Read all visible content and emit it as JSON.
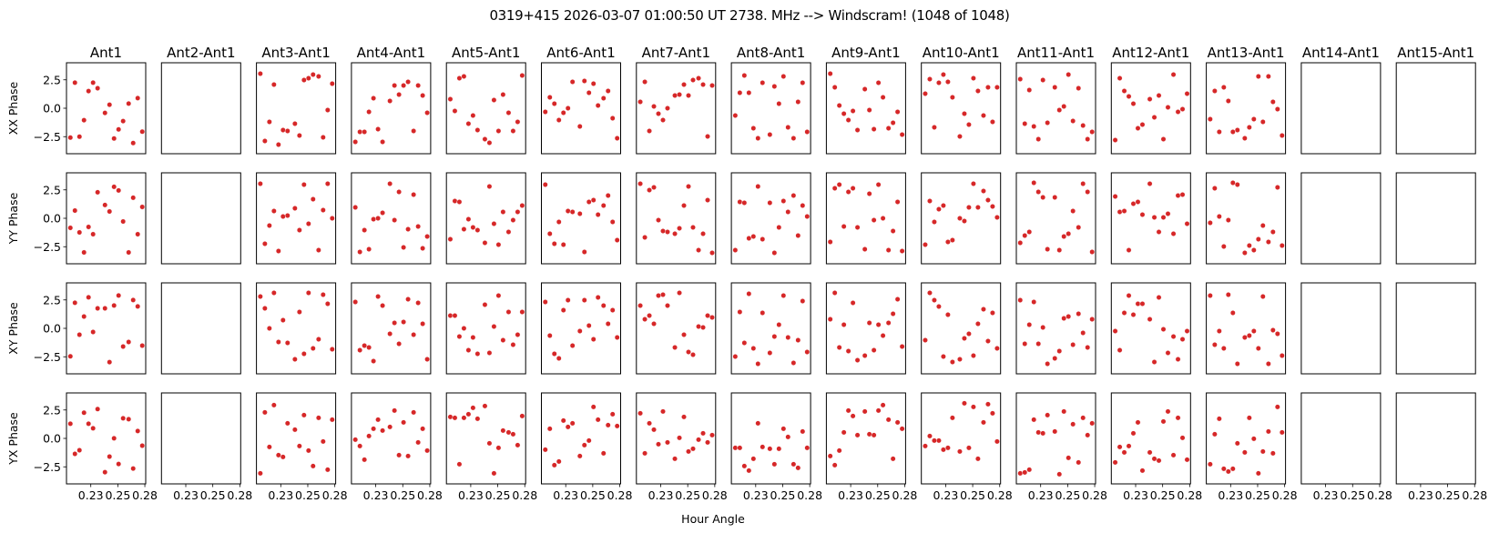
{
  "chart_data": {
    "type": "scatter",
    "title": "0319+415  2026-03-07 01:00:50 UT  2738. MHz  --> Windscram! (1048 of 1048)",
    "xlabel": "Hour Angle",
    "row_labels": [
      "XX Phase",
      "YY Phase",
      "XY Phase",
      "YX Phase"
    ],
    "row_keys": [
      "XX",
      "YY",
      "XY",
      "YX"
    ],
    "xlim": [
      0.2025,
      0.2758
    ],
    "ylim": [
      -4.0,
      4.0
    ],
    "xticks": [
      {
        "value": 0.225,
        "label": "0.23"
      },
      {
        "value": 0.25,
        "label": "0.25"
      },
      {
        "value": 0.275,
        "label": "0.28"
      }
    ],
    "yticks": [
      {
        "value": 2.5,
        "label": "2.5"
      },
      {
        "value": 0.0,
        "label": "0.0"
      },
      {
        "value": -2.5,
        "label": "−2.5"
      }
    ],
    "marker_color": "#d62728",
    "grid": false,
    "x": [
      0.2061,
      0.2103,
      0.2145,
      0.2187,
      0.2229,
      0.2271,
      0.2313,
      0.2381,
      0.2423,
      0.2465,
      0.2507,
      0.2549,
      0.26,
      0.2642,
      0.2684,
      0.2726
    ],
    "panels": [
      {
        "title": "Ant1",
        "XX": [
          -2.58,
          2.25,
          -2.5,
          -1.05,
          1.51,
          2.25,
          1.76,
          -0.41,
          0.31,
          -2.66,
          -1.86,
          -1.13,
          0.41,
          -3.06,
          0.89,
          -2.06
        ],
        "YY": [
          -0.84,
          0.68,
          -1.24,
          -3.0,
          -0.76,
          -1.4,
          2.29,
          1.17,
          0.6,
          2.77,
          2.45,
          -0.28,
          -3.0,
          1.81,
          -1.4,
          1.0
        ],
        "XY": [
          -2.46,
          2.25,
          -0.56,
          1.04,
          2.73,
          -0.32,
          1.76,
          1.76,
          -2.97,
          2.01,
          2.89,
          -1.6,
          -1.2,
          2.49,
          1.93,
          -1.52
        ],
        "YX": [
          1.29,
          -1.36,
          -1.04,
          2.26,
          1.29,
          0.89,
          2.58,
          -2.97,
          -1.6,
          0.01,
          -2.25,
          1.77,
          1.69,
          -2.65,
          0.65,
          -0.64
        ]
      },
      {
        "title": "Ant2-Ant1",
        "XX": [],
        "YY": [],
        "XY": [],
        "YX": []
      },
      {
        "title": "Ant3-Ant1",
        "XX": [
          3.04,
          -2.88,
          -1.2,
          2.08,
          -3.2,
          -1.92,
          -2.0,
          -1.36,
          -2.4,
          2.48,
          2.64,
          2.96,
          2.8,
          -2.56,
          -0.16,
          2.16
        ],
        "YY": [
          3.04,
          -2.24,
          -0.64,
          0.64,
          -2.88,
          0.16,
          0.24,
          0.88,
          -1.04,
          2.96,
          -0.48,
          1.68,
          -2.8,
          0.72,
          3.04,
          0.0
        ],
        "XY": [
          2.8,
          1.76,
          0.0,
          3.12,
          -1.2,
          0.72,
          -1.28,
          -2.72,
          1.44,
          -2.24,
          3.12,
          -1.76,
          -0.96,
          2.96,
          2.16,
          -1.84
        ],
        "YX": [
          -3.07,
          2.29,
          -0.75,
          2.93,
          -1.47,
          -1.63,
          1.33,
          0.77,
          -0.67,
          2.05,
          -1.07,
          -2.43,
          1.81,
          -0.27,
          -2.75,
          1.65
        ]
      },
      {
        "title": "Ant4-Ant1",
        "XX": [
          -2.96,
          -2.08,
          -2.08,
          -0.32,
          0.88,
          -1.84,
          -2.96,
          0.64,
          2.0,
          1.2,
          2.0,
          2.32,
          -2.0,
          2.0,
          1.12,
          -0.4
        ],
        "YY": [
          0.96,
          -2.96,
          -1.04,
          -2.72,
          -0.08,
          0.0,
          0.48,
          3.04,
          -0.16,
          2.32,
          -2.56,
          -0.96,
          2.08,
          -0.72,
          -2.64,
          -1.6
        ],
        "XY": [
          2.32,
          -1.92,
          -1.52,
          -1.68,
          -2.88,
          2.8,
          2.0,
          -0.48,
          0.48,
          -1.36,
          0.56,
          2.56,
          -0.56,
          2.24,
          0.4,
          -2.72
        ],
        "YX": [
          -0.11,
          -0.67,
          -1.87,
          0.21,
          0.85,
          1.65,
          0.69,
          1.01,
          2.45,
          -1.47,
          1.41,
          -1.55,
          2.29,
          -0.35,
          0.85,
          -1.07
        ]
      },
      {
        "title": "Ant5-Ant1",
        "XX": [
          0.8,
          -0.24,
          2.64,
          2.8,
          -1.36,
          -0.64,
          -1.92,
          -2.72,
          -3.04,
          0.72,
          -2.0,
          1.2,
          -0.4,
          -2.0,
          -1.2,
          2.88
        ],
        "YY": [
          -1.84,
          1.52,
          1.44,
          -0.96,
          -0.08,
          -0.8,
          -1.04,
          -2.16,
          2.8,
          -0.48,
          -2.32,
          0.56,
          -1.2,
          -0.16,
          0.56,
          1.12
        ],
        "XY": [
          1.12,
          1.12,
          -0.72,
          0.0,
          -1.92,
          -0.8,
          -2.24,
          2.08,
          -2.16,
          0.16,
          2.88,
          -1.04,
          1.44,
          -1.44,
          -0.56,
          1.44
        ],
        "YX": [
          1.89,
          1.81,
          -2.27,
          1.81,
          2.13,
          2.69,
          1.73,
          2.85,
          -0.43,
          -3.07,
          -0.83,
          0.69,
          0.53,
          0.37,
          -0.59,
          1.97
        ]
      },
      {
        "title": "Ant6-Ant1",
        "XX": [
          -0.32,
          0.96,
          0.4,
          -1.04,
          -0.4,
          0.0,
          2.32,
          -1.6,
          2.4,
          1.36,
          2.16,
          0.24,
          0.88,
          1.52,
          -0.88,
          -2.64
        ],
        "YY": [
          2.96,
          -1.36,
          -2.24,
          -0.32,
          -2.32,
          0.64,
          0.56,
          0.4,
          -2.96,
          1.44,
          1.6,
          0.32,
          1.12,
          2.0,
          -0.32,
          -1.92
        ],
        "XY": [
          2.32,
          -0.64,
          -2.24,
          -2.64,
          1.6,
          2.48,
          -1.52,
          -0.24,
          2.48,
          0.24,
          -0.96,
          2.72,
          2.0,
          0.4,
          1.6,
          -0.8
        ],
        "YX": [
          -0.99,
          0.85,
          -2.35,
          -2.03,
          1.57,
          1.01,
          1.33,
          -1.55,
          -0.59,
          -0.19,
          2.77,
          1.65,
          -1.31,
          1.17,
          2.13,
          1.09
        ]
      },
      {
        "title": "Ant7-Ant1",
        "XX": [
          0.56,
          2.32,
          -2.0,
          0.16,
          -0.48,
          -1.04,
          0.0,
          1.12,
          1.2,
          2.08,
          1.12,
          2.48,
          2.64,
          2.08,
          -2.48,
          2.0
        ],
        "YY": [
          3.04,
          -1.68,
          2.48,
          2.72,
          -0.16,
          -1.12,
          -1.2,
          -1.36,
          -0.88,
          1.12,
          2.8,
          -0.8,
          -2.8,
          -1.36,
          1.6,
          -3.04
        ],
        "XY": [
          2.0,
          0.8,
          1.12,
          0.4,
          2.88,
          2.96,
          2.0,
          -1.68,
          3.12,
          -0.56,
          -2.08,
          -2.32,
          0.16,
          0.08,
          1.12,
          0.96
        ],
        "YX": [
          2.21,
          -1.31,
          1.33,
          0.77,
          -0.51,
          2.37,
          -0.35,
          -1.79,
          0.05,
          1.89,
          -1.15,
          -0.91,
          -0.11,
          0.45,
          -0.35,
          0.29
        ]
      },
      {
        "title": "Ant8-Ant1",
        "XX": [
          -0.64,
          1.36,
          2.88,
          1.36,
          -1.76,
          -2.64,
          2.24,
          -2.32,
          1.92,
          0.4,
          2.8,
          -1.68,
          -2.64,
          0.56,
          2.24,
          -2.08
        ],
        "YY": [
          -2.8,
          1.44,
          1.36,
          -1.76,
          -1.6,
          2.8,
          -1.84,
          1.36,
          -3.04,
          -0.8,
          1.52,
          0.56,
          2.0,
          -1.52,
          1.12,
          0.16
        ],
        "XY": [
          -2.48,
          1.44,
          -1.28,
          3.04,
          -1.76,
          -3.12,
          1.36,
          -2.16,
          -0.72,
          0.32,
          2.88,
          -0.8,
          -3.04,
          -1.04,
          2.4,
          -2.08
        ],
        "YX": [
          -0.83,
          -0.83,
          -2.43,
          -2.83,
          -1.79,
          1.33,
          -0.75,
          -0.91,
          -2.27,
          -0.91,
          0.85,
          0.13,
          -2.27,
          -2.59,
          0.61,
          -0.83
        ]
      },
      {
        "title": "Ant9-Ant1",
        "XX": [
          3.04,
          1.84,
          0.24,
          -0.48,
          -1.04,
          -0.24,
          -1.92,
          1.68,
          -0.16,
          -1.84,
          2.24,
          0.96,
          -1.76,
          -1.28,
          -0.32,
          -2.32
        ],
        "YY": [
          -2.08,
          2.64,
          2.96,
          -0.72,
          2.32,
          2.64,
          -0.8,
          -2.72,
          2.16,
          -0.16,
          2.96,
          0.0,
          -2.8,
          -1.12,
          1.44,
          -2.88
        ],
        "XY": [
          0.8,
          3.12,
          -1.68,
          0.32,
          -2.0,
          2.24,
          -2.8,
          -2.4,
          0.48,
          -1.92,
          0.32,
          -0.64,
          0.48,
          1.28,
          2.56,
          -1.6
        ],
        "YX": [
          -1.55,
          -2.35,
          -1.07,
          0.53,
          2.45,
          1.97,
          0.29,
          2.37,
          0.37,
          0.29,
          2.45,
          2.93,
          1.65,
          -1.79,
          1.41,
          0.85
        ]
      },
      {
        "title": "Ant10-Ant1",
        "XX": [
          1.28,
          2.56,
          -1.68,
          2.24,
          2.96,
          2.32,
          0.96,
          -2.48,
          -0.48,
          -1.44,
          2.64,
          1.52,
          -0.64,
          1.84,
          -1.2,
          1.84
        ],
        "YY": [
          -2.32,
          1.52,
          -0.32,
          0.8,
          1.12,
          -2.08,
          -1.92,
          0.0,
          -0.24,
          0.96,
          3.04,
          0.96,
          2.4,
          1.6,
          1.04,
          0.08
        ],
        "XY": [
          -1.04,
          3.12,
          2.48,
          1.92,
          -2.48,
          1.2,
          -2.96,
          -2.72,
          -0.88,
          -0.48,
          -2.4,
          0.4,
          1.68,
          -1.12,
          1.36,
          -1.76
        ],
        "YX": [
          -0.67,
          0.21,
          -0.19,
          -0.19,
          -0.99,
          -0.83,
          1.81,
          -1.15,
          3.09,
          -0.83,
          2.77,
          -1.79,
          1.41,
          3.01,
          2.21,
          -0.27
        ]
      },
      {
        "title": "Ant11-Ant1",
        "XX": [
          2.56,
          -1.36,
          1.6,
          -1.6,
          -2.72,
          2.48,
          -1.28,
          1.84,
          -0.16,
          0.16,
          2.96,
          -1.12,
          1.76,
          -1.52,
          -2.72,
          -2.08
        ],
        "YY": [
          -2.16,
          -1.52,
          -1.2,
          3.12,
          2.32,
          1.84,
          -2.72,
          1.84,
          -2.8,
          -1.6,
          -1.36,
          0.64,
          -0.8,
          3.04,
          2.32,
          -2.96
        ],
        "XY": [
          2.48,
          -1.36,
          0.32,
          2.32,
          -1.36,
          0.08,
          -3.12,
          -2.64,
          -2.0,
          0.88,
          1.04,
          -1.44,
          1.28,
          -0.4,
          -1.68,
          0.8
        ],
        "YX": [
          -3.07,
          -2.99,
          -2.75,
          1.65,
          0.53,
          0.45,
          2.05,
          0.61,
          -3.15,
          2.37,
          -1.71,
          1.25,
          -2.11,
          1.81,
          0.29,
          1.33
        ]
      },
      {
        "title": "Ant12-Ant1",
        "XX": [
          -2.8,
          2.64,
          1.52,
          1.04,
          0.4,
          -1.76,
          -1.44,
          0.8,
          -0.8,
          1.12,
          -2.72,
          0.08,
          2.96,
          -0.32,
          -0.08,
          1.28
        ],
        "YY": [
          1.92,
          0.56,
          0.64,
          -2.8,
          1.28,
          1.44,
          0.32,
          3.04,
          0.08,
          -1.2,
          0.08,
          0.4,
          -1.36,
          2.0,
          2.08,
          -0.48
        ],
        "XY": [
          -0.24,
          -1.92,
          1.36,
          2.88,
          1.2,
          2.16,
          2.16,
          0.8,
          -2.96,
          2.72,
          -0.08,
          -2.16,
          -0.72,
          -2.72,
          -0.96,
          -0.24
        ],
        "YX": [
          -2.11,
          -0.75,
          -1.23,
          -0.67,
          0.45,
          1.41,
          -2.83,
          -1.23,
          -1.79,
          -1.95,
          1.49,
          2.37,
          -1.47,
          1.81,
          0.05,
          -1.87
        ]
      },
      {
        "title": "Ant13-Ant1",
        "XX": [
          -0.96,
          1.52,
          -2.08,
          1.84,
          0.64,
          -2.08,
          -1.92,
          -2.64,
          -1.68,
          -0.96,
          2.8,
          -1.2,
          2.8,
          0.56,
          -0.08,
          -2.4
        ],
        "YY": [
          -0.4,
          2.64,
          0.16,
          -2.48,
          -0.16,
          3.12,
          2.96,
          -3.04,
          -2.4,
          -2.8,
          -1.84,
          -0.64,
          -2.08,
          -1.2,
          2.72,
          -2.4
        ],
        "XY": [
          2.88,
          -1.44,
          -0.24,
          -1.76,
          2.96,
          1.36,
          -3.12,
          -0.8,
          -0.64,
          -0.24,
          -1.76,
          2.8,
          -3.12,
          -0.16,
          -0.48,
          -2.4
        ],
        "YX": [
          -2.27,
          0.37,
          1.73,
          -2.67,
          -2.91,
          -2.67,
          -0.43,
          -1.23,
          1.81,
          -0.03,
          -3.07,
          -1.15,
          0.61,
          -1.31,
          2.77,
          0.53
        ]
      },
      {
        "title": "Ant14-Ant1",
        "XX": [],
        "YY": [],
        "XY": [],
        "YX": []
      },
      {
        "title": "Ant15-Ant1",
        "XX": [],
        "YY": [],
        "XY": [],
        "YX": []
      }
    ]
  }
}
